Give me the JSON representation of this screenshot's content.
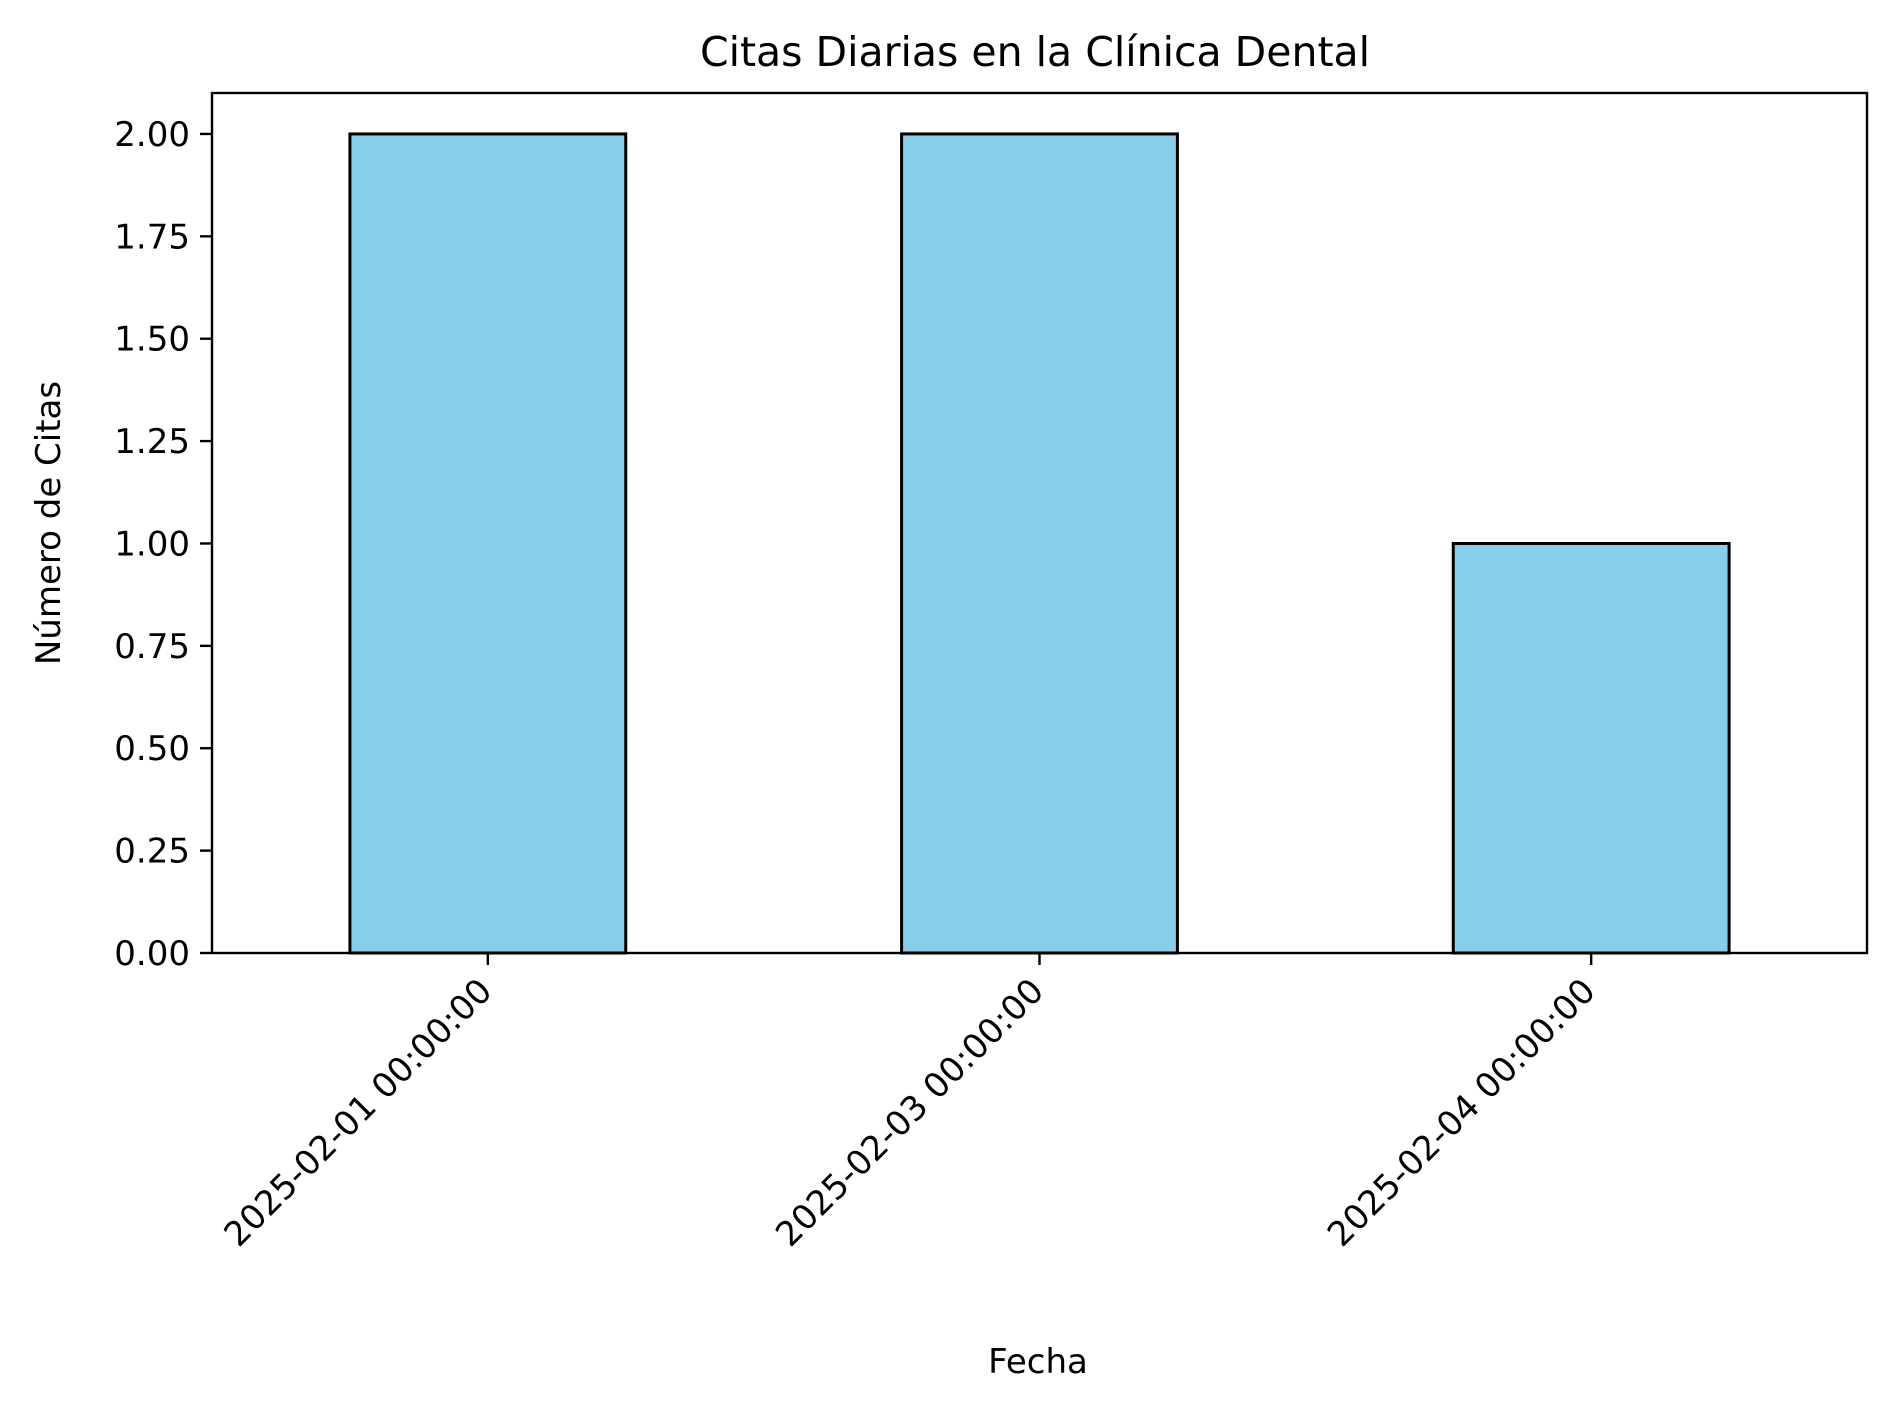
{
  "chart_data": {
    "type": "bar",
    "title": "Citas Diarias en la Clínica Dental",
    "xlabel": "Fecha",
    "ylabel": "Número de Citas",
    "categories": [
      "2025-02-01 00:00:00",
      "2025-02-03 00:00:00",
      "2025-02-04 00:00:00"
    ],
    "values": [
      2,
      2,
      1
    ],
    "ylim": [
      0,
      2.1
    ],
    "yticks": [
      "0.00",
      "0.25",
      "0.50",
      "0.75",
      "1.00",
      "1.25",
      "1.50",
      "1.75",
      "2.00"
    ],
    "grid": false,
    "legend": "none",
    "colors": {
      "bar_fill": "#87CEEB",
      "bar_edge": "#000000"
    }
  }
}
